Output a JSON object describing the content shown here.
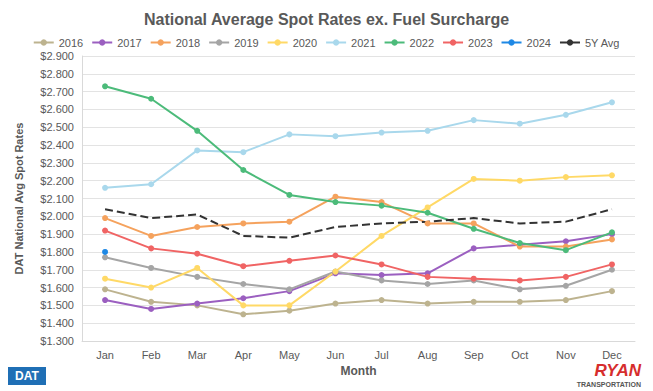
{
  "chart_data": {
    "type": "line",
    "title": "National Average Spot Rates ex. Fuel Surcharge",
    "x_label": "Month",
    "y_label": "DAT National Avg Spot Rates",
    "annotations": [
      "DAT",
      "RYAN",
      "TRANSPORTATION"
    ],
    "categories": [
      "Jan",
      "Feb",
      "Mar",
      "Apr",
      "May",
      "Jun",
      "Jul",
      "Aug",
      "Sep",
      "Oct",
      "Nov",
      "Dec"
    ],
    "series": [
      {
        "name": "2016",
        "color": "#bdb38f",
        "marker": "circle",
        "line_style": "solid",
        "values": [
          1.59,
          1.52,
          1.5,
          1.45,
          1.47,
          1.51,
          1.53,
          1.51,
          1.52,
          1.52,
          1.53,
          1.58
        ]
      },
      {
        "name": "2017",
        "color": "#9b5fc0",
        "marker": "circle",
        "line_style": "solid",
        "values": [
          1.53,
          1.48,
          1.51,
          1.54,
          1.58,
          1.68,
          1.67,
          1.68,
          1.82,
          1.84,
          1.86,
          1.9
        ]
      },
      {
        "name": "2018",
        "color": "#f5a25d",
        "marker": "circle",
        "line_style": "solid",
        "values": [
          1.99,
          1.89,
          1.94,
          1.96,
          1.97,
          2.11,
          2.08,
          1.96,
          1.96,
          1.83,
          1.83,
          1.87
        ]
      },
      {
        "name": "2019",
        "color": "#a5a5a5",
        "marker": "circle",
        "line_style": "solid",
        "values": [
          1.77,
          1.71,
          1.66,
          1.62,
          1.59,
          1.69,
          1.64,
          1.62,
          1.64,
          1.59,
          1.61,
          1.7
        ]
      },
      {
        "name": "2020",
        "color": "#ffd966",
        "marker": "circle",
        "line_style": "solid",
        "values": [
          1.65,
          1.6,
          1.71,
          1.5,
          1.5,
          1.69,
          1.89,
          2.05,
          2.21,
          2.2,
          2.22,
          2.23
        ]
      },
      {
        "name": "2021",
        "color": "#a9d8ec",
        "marker": "circle",
        "line_style": "solid",
        "values": [
          2.16,
          2.18,
          2.37,
          2.36,
          2.46,
          2.45,
          2.47,
          2.48,
          2.54,
          2.52,
          2.57,
          2.64
        ]
      },
      {
        "name": "2022",
        "color": "#4cbb7a",
        "marker": "circle",
        "line_style": "solid",
        "values": [
          2.73,
          2.66,
          2.48,
          2.26,
          2.12,
          2.08,
          2.06,
          2.02,
          1.93,
          1.85,
          1.81,
          1.91
        ]
      },
      {
        "name": "2023",
        "color": "#f06464",
        "marker": "circle",
        "line_style": "solid",
        "values": [
          1.92,
          1.82,
          1.79,
          1.72,
          1.75,
          1.78,
          1.73,
          1.66,
          1.65,
          1.64,
          1.66,
          1.73
        ]
      },
      {
        "name": "2024",
        "color": "#1e88e5",
        "marker": "circle",
        "line_style": "solid",
        "values": [
          1.8,
          null,
          null,
          null,
          null,
          null,
          null,
          null,
          null,
          null,
          null,
          null
        ]
      },
      {
        "name": "5Y Avg",
        "color": "#333333",
        "marker": "none",
        "line_style": "dashed",
        "values": [
          2.04,
          1.99,
          2.01,
          1.89,
          1.88,
          1.94,
          1.96,
          1.97,
          1.99,
          1.96,
          1.97,
          2.04
        ]
      }
    ],
    "ylim": [
      1.3,
      2.9
    ],
    "yticks": [
      {
        "value": 1.3,
        "label": "$1.300"
      },
      {
        "value": 1.4,
        "label": "$1.400"
      },
      {
        "value": 1.5,
        "label": "$1.500"
      },
      {
        "value": 1.6,
        "label": "$1.600"
      },
      {
        "value": 1.7,
        "label": "$1.700"
      },
      {
        "value": 1.8,
        "label": "$1.800"
      },
      {
        "value": 1.9,
        "label": "$1.900"
      },
      {
        "value": 2.0,
        "label": "$2.000"
      },
      {
        "value": 2.1,
        "label": "$2.100"
      },
      {
        "value": 2.2,
        "label": "$2.200"
      },
      {
        "value": 2.3,
        "label": "$2.300"
      },
      {
        "value": 2.4,
        "label": "$2.400"
      },
      {
        "value": 2.5,
        "label": "$2.500"
      },
      {
        "value": 2.6,
        "label": "$2.600"
      },
      {
        "value": 2.7,
        "label": "$2.700"
      },
      {
        "value": 2.8,
        "label": "$2.800"
      },
      {
        "value": 2.9,
        "label": "$2.900"
      }
    ],
    "grid": true,
    "legend": "top"
  }
}
